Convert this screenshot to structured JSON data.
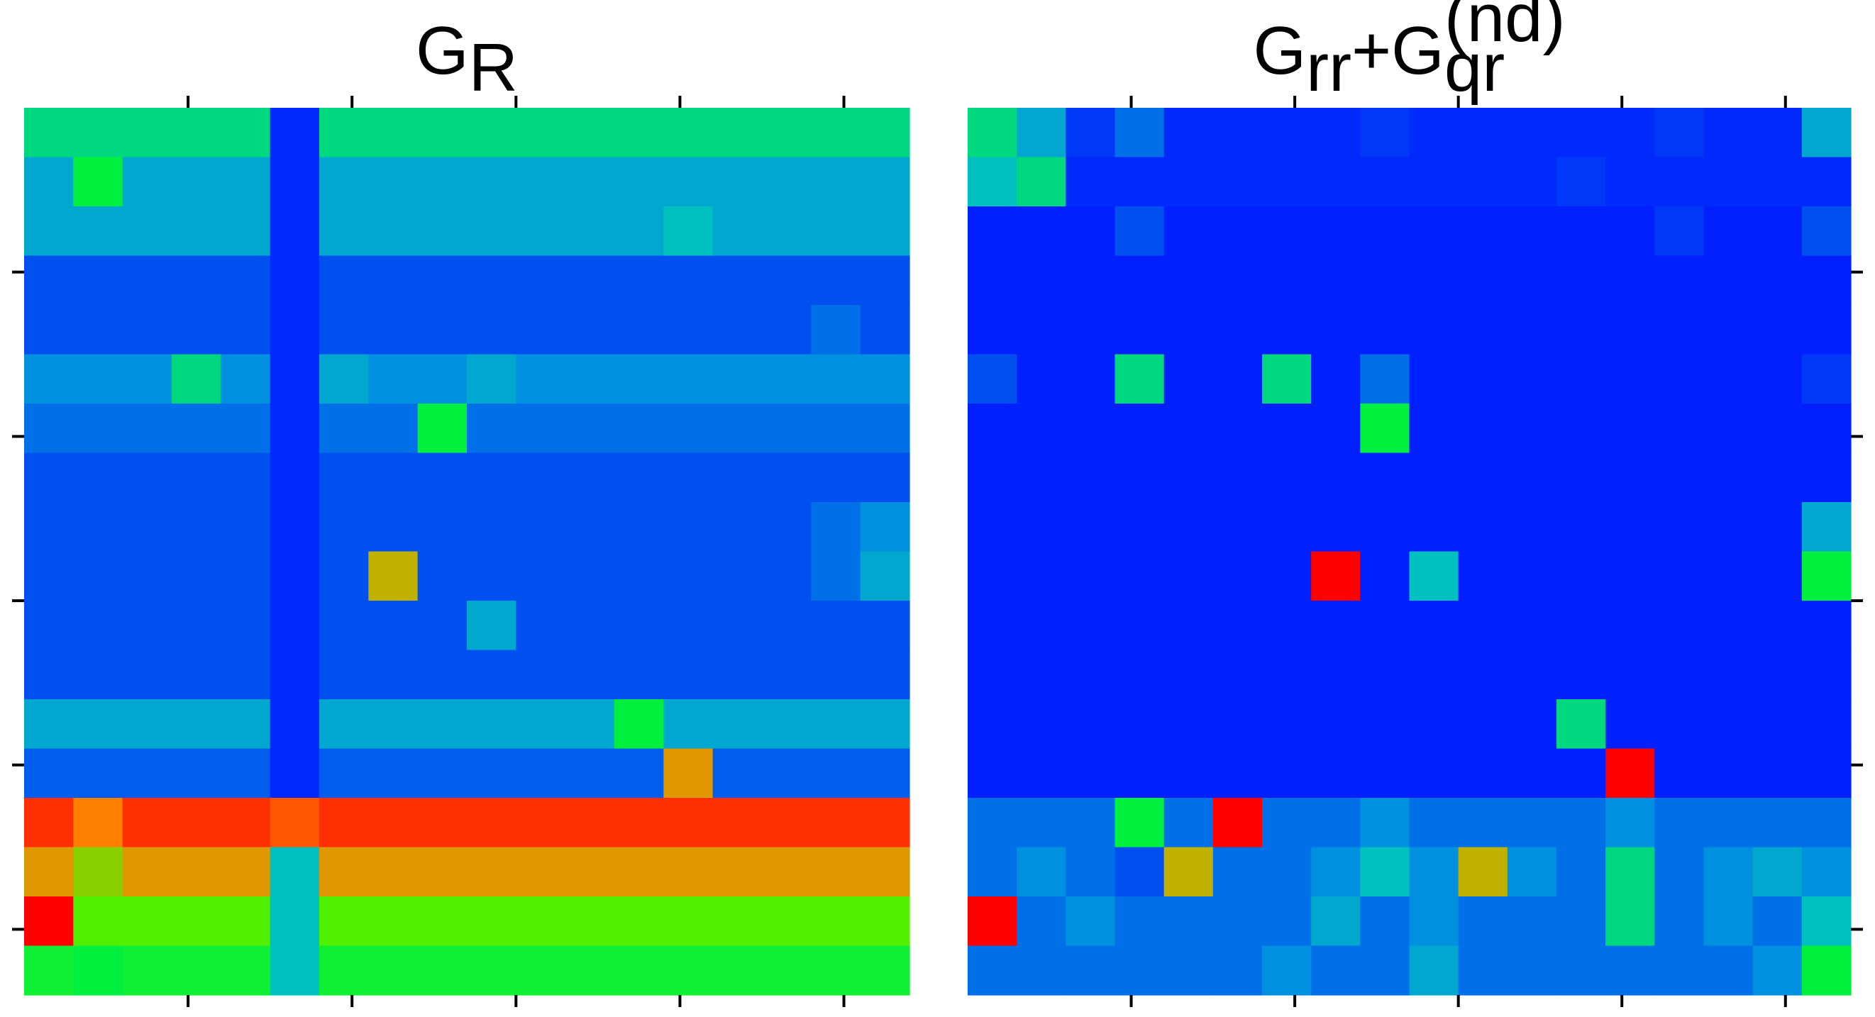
{
  "chart_data": [
    {
      "type": "heatmap",
      "title": [
        {
          "text": "G",
          "shift": "base"
        },
        {
          "text": "R",
          "shift": "sub"
        }
      ],
      "xlim": [
        0,
        54
      ],
      "ylim": [
        0,
        54
      ],
      "xticks": [
        10,
        20,
        30,
        40,
        50
      ],
      "yticks": [
        10,
        20,
        30,
        40,
        50
      ],
      "xtick_sides": [
        "top",
        "bottom"
      ],
      "ytick_side": "left",
      "vmin": 0,
      "vmax": 10,
      "colormap": [
        "#0000ff",
        "#0020ff",
        "#0050f0",
        "#0090e0",
        "#00c0c0",
        "#00f040",
        "#50f000",
        "#c0b000",
        "#ff8000",
        "#ff3000",
        "#ff0000"
      ],
      "values": [
        [
          4.5,
          4.5,
          4.5,
          4.5,
          4.5,
          1.2,
          4.5,
          4.5,
          4.5,
          4.5,
          4.5,
          4.5,
          4.5,
          4.5,
          4.5,
          4.5,
          4.5,
          4.5
        ],
        [
          3.5,
          5,
          3.5,
          3.5,
          3.5,
          1.2,
          3.5,
          3.5,
          3.5,
          3.5,
          3.5,
          3.5,
          3.5,
          3.5,
          3.5,
          3.5,
          3.5,
          3.5
        ],
        [
          3.5,
          3.5,
          3.5,
          3.5,
          3.5,
          1.2,
          3.5,
          3.5,
          3.5,
          3.5,
          3.5,
          3.5,
          3.5,
          4,
          3.5,
          3.5,
          3.5,
          3.5
        ],
        [
          2,
          2,
          2,
          2,
          2,
          1.2,
          2,
          2,
          2,
          2,
          2,
          2,
          2,
          2,
          2,
          2,
          2,
          2
        ],
        [
          2,
          2,
          2,
          2,
          2,
          1.2,
          2,
          2,
          2,
          2,
          2,
          2,
          2,
          2,
          2,
          2,
          2.5,
          2
        ],
        [
          3,
          3,
          3,
          4.5,
          3,
          1.2,
          3.5,
          3,
          3,
          3.5,
          3,
          3,
          3,
          3,
          3,
          3,
          3,
          3
        ],
        [
          2.5,
          2.5,
          2.5,
          2.5,
          2.5,
          1.2,
          2.5,
          2.5,
          5,
          2.5,
          2.5,
          2.5,
          2.5,
          2.5,
          2.5,
          2.5,
          2.5,
          2.5
        ],
        [
          2,
          2,
          2,
          2,
          2,
          1.2,
          2,
          2,
          2,
          2,
          2,
          2,
          2,
          2,
          2,
          2,
          2,
          2
        ],
        [
          2,
          2,
          2,
          2,
          2,
          1.2,
          2,
          2,
          2,
          2,
          2,
          2,
          2,
          2,
          2,
          2,
          2.5,
          3
        ],
        [
          2,
          2,
          2,
          2,
          2,
          1.2,
          2,
          7,
          2,
          2,
          2,
          2,
          2,
          2,
          2,
          2,
          2.5,
          3.5
        ],
        [
          2,
          2,
          2,
          2,
          2,
          1.2,
          2,
          2,
          2,
          3.5,
          2,
          2,
          2,
          2,
          2,
          2,
          2,
          2
        ],
        [
          2,
          2,
          2,
          2,
          2,
          1.2,
          2,
          2,
          2,
          2,
          2,
          2,
          2,
          2,
          2,
          2,
          2,
          2
        ],
        [
          3.5,
          3.5,
          3.5,
          3.5,
          3.5,
          1.2,
          3.5,
          3.5,
          3.5,
          3.5,
          3.5,
          3.5,
          5,
          3.5,
          3.5,
          3.5,
          3.5,
          3.5
        ],
        [
          2.2,
          2.2,
          2.2,
          2.2,
          2.2,
          1.2,
          2.2,
          2.2,
          2.2,
          2.2,
          2.2,
          2.2,
          2.2,
          7.5,
          2.2,
          2.2,
          2.2,
          2.2
        ],
        [
          9,
          8,
          9,
          9,
          9,
          8.5,
          9,
          9,
          9,
          9,
          9,
          9,
          9,
          9,
          9,
          9,
          9,
          9
        ],
        [
          7.5,
          6.5,
          7.5,
          7.5,
          7.5,
          4,
          7.5,
          7.5,
          7.5,
          7.5,
          7.5,
          7.5,
          7.5,
          7.5,
          7.5,
          7.5,
          7.5,
          7.5
        ],
        [
          10,
          6,
          6,
          6,
          6,
          4,
          6,
          6,
          6,
          6,
          6,
          6,
          6,
          6,
          6,
          6,
          6,
          6
        ],
        [
          5.2,
          5,
          5.2,
          5.2,
          5.2,
          4,
          5.2,
          5.2,
          5.2,
          5.2,
          5.2,
          5.2,
          5.2,
          5.2,
          5.2,
          5.2,
          5.2,
          5.2
        ]
      ]
    },
    {
      "type": "heatmap",
      "title": [
        {
          "text": "G",
          "shift": "base"
        },
        {
          "text": "rr",
          "shift": "sub"
        },
        {
          "text": "+G",
          "shift": "base"
        },
        {
          "text": "qr",
          "shift": "sub"
        },
        {
          "text": "(nd)",
          "shift": "sup"
        }
      ],
      "xlim": [
        0,
        54
      ],
      "ylim": [
        0,
        54
      ],
      "xticks": [
        10,
        20,
        30,
        40,
        50
      ],
      "yticks": [
        10,
        20,
        30,
        40,
        50
      ],
      "xtick_sides": [
        "top",
        "bottom"
      ],
      "ytick_side": "right",
      "vmin": 0,
      "vmax": 10,
      "colormap": [
        "#0000ff",
        "#0020ff",
        "#0050f0",
        "#0090e0",
        "#00c0c0",
        "#00f040",
        "#50f000",
        "#c0b000",
        "#ff8000",
        "#ff3000",
        "#ff0000"
      ],
      "values": [
        [
          4.5,
          3.5,
          1.5,
          2.5,
          1.2,
          1.2,
          1.2,
          1.2,
          1.5,
          1.2,
          1.2,
          1.2,
          1.2,
          1.2,
          1.5,
          1.2,
          1.2,
          3.5
        ],
        [
          4,
          4.5,
          1.2,
          1.2,
          1.2,
          1.2,
          1.2,
          1.2,
          1.2,
          1.2,
          1.2,
          1.2,
          1.5,
          1.2,
          1.2,
          1.2,
          1.2,
          1.2
        ],
        [
          1,
          1,
          1,
          2,
          1,
          1,
          1,
          1,
          1,
          1,
          1,
          1,
          1,
          1,
          1.5,
          1,
          1,
          2
        ],
        [
          1,
          1,
          1,
          1,
          1,
          1,
          1,
          1,
          1,
          1,
          1,
          1,
          1,
          1,
          1,
          1,
          1,
          1
        ],
        [
          1,
          1,
          1,
          1,
          1,
          1,
          1,
          1,
          1,
          1,
          1,
          1,
          1,
          1,
          1,
          1,
          1,
          1
        ],
        [
          2,
          1,
          1,
          4.5,
          1,
          1,
          4.5,
          1,
          2.5,
          1,
          1,
          1,
          1,
          1,
          1,
          1,
          1,
          1.5
        ],
        [
          1,
          1,
          1,
          1,
          1,
          1,
          1,
          1,
          5,
          1,
          1,
          1,
          1,
          1,
          1,
          1,
          1,
          1
        ],
        [
          1,
          1,
          1,
          1,
          1,
          1,
          1,
          1,
          1,
          1,
          1,
          1,
          1,
          1,
          1,
          1,
          1,
          1
        ],
        [
          1,
          1,
          1,
          1,
          1,
          1,
          1,
          1,
          1,
          1,
          1,
          1,
          1,
          1,
          1,
          1,
          1,
          3.5
        ],
        [
          1,
          1,
          1,
          1,
          1,
          1,
          1,
          10,
          1,
          4,
          1,
          1,
          1,
          1,
          1,
          1,
          1,
          5
        ],
        [
          1,
          1,
          1,
          1,
          1,
          1,
          1,
          1,
          1,
          1,
          1,
          1,
          1,
          1,
          1,
          1,
          1,
          1
        ],
        [
          1,
          1,
          1,
          1,
          1,
          1,
          1,
          1,
          1,
          1,
          1,
          1,
          1,
          1,
          1,
          1,
          1,
          1
        ],
        [
          1,
          1,
          1,
          1,
          1,
          1,
          1,
          1,
          1,
          1,
          1,
          1,
          4.5,
          1,
          1,
          1,
          1,
          1
        ],
        [
          1,
          1,
          1,
          1,
          1,
          1,
          1,
          1,
          1,
          1,
          1,
          1,
          1,
          10,
          1,
          1,
          1,
          1
        ],
        [
          2.5,
          2.5,
          2.5,
          5,
          2.5,
          10,
          2.5,
          2.5,
          3,
          2.5,
          2.5,
          2.5,
          2.5,
          3,
          2.5,
          2.5,
          2.5,
          2.5
        ],
        [
          2.5,
          3,
          2.5,
          2,
          7,
          2.5,
          2.5,
          3,
          4,
          3,
          7,
          3,
          2.5,
          4.5,
          2.5,
          3,
          3.5,
          3
        ],
        [
          10,
          2.5,
          3,
          2.5,
          2.5,
          2.5,
          2.5,
          3.5,
          2.5,
          3,
          2.5,
          2.5,
          2.5,
          4.5,
          2.5,
          3,
          2.5,
          4
        ],
        [
          2.5,
          2.5,
          2.5,
          2.5,
          2.5,
          2.5,
          3,
          2.5,
          2.5,
          3.5,
          2.5,
          2.5,
          2.5,
          2.5,
          2.5,
          2.5,
          3,
          5
        ]
      ]
    }
  ]
}
